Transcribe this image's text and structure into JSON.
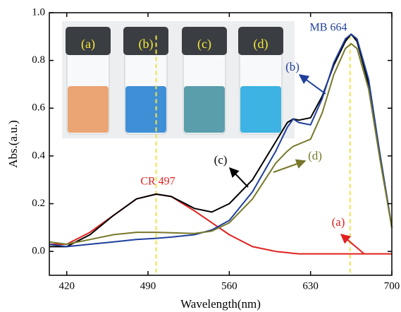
{
  "chart_data": {
    "type": "line",
    "x_label": "Wavelength(nm)",
    "y_label": "Abs.(a.u.)",
    "x": [
      405,
      420,
      440,
      460,
      480,
      497,
      510,
      530,
      545,
      560,
      580,
      600,
      610,
      615,
      620,
      630,
      640,
      650,
      660,
      665,
      670,
      680,
      690,
      700
    ],
    "series": [
      {
        "name": "(a)",
        "color": "#e0201e",
        "values": [
          0.03,
          0.03,
          0.08,
          0.15,
          0.22,
          0.24,
          0.23,
          0.17,
          0.12,
          0.07,
          0.02,
          0.0,
          -0.005,
          -0.008,
          -0.01,
          -0.01,
          -0.01,
          -0.01,
          -0.01,
          -0.01,
          -0.01,
          -0.01,
          -0.01,
          -0.01
        ]
      },
      {
        "name": "(c)",
        "color": "#000000",
        "values": [
          0.02,
          0.02,
          0.07,
          0.15,
          0.22,
          0.24,
          0.23,
          0.18,
          0.165,
          0.2,
          0.3,
          0.46,
          0.54,
          0.555,
          0.55,
          0.56,
          0.65,
          0.78,
          0.88,
          0.91,
          0.88,
          0.7,
          0.4,
          0.1
        ]
      },
      {
        "name": "(b)",
        "color": "#1f3f9c",
        "values": [
          0.03,
          0.02,
          0.03,
          0.04,
          0.05,
          0.055,
          0.06,
          0.07,
          0.09,
          0.13,
          0.25,
          0.42,
          0.52,
          0.555,
          0.54,
          0.53,
          0.64,
          0.79,
          0.89,
          0.91,
          0.89,
          0.72,
          0.4,
          0.1
        ]
      },
      {
        "name": "(d)",
        "color": "#77782a",
        "values": [
          0.04,
          0.03,
          0.05,
          0.07,
          0.08,
          0.08,
          0.078,
          0.075,
          0.085,
          0.12,
          0.22,
          0.37,
          0.42,
          0.44,
          0.45,
          0.47,
          0.58,
          0.74,
          0.85,
          0.87,
          0.85,
          0.68,
          0.38,
          0.1
        ]
      }
    ],
    "markers": [
      497,
      664
    ],
    "marker_color": "#f2e24a",
    "annotations": [
      {
        "text": "MB 664",
        "color": "#1f3f9c"
      },
      {
        "text": "CR 497",
        "color": "#e0201e"
      }
    ],
    "inset_labels": [
      "(a)",
      "(b)",
      "(c)",
      "(d)"
    ],
    "xlim": [
      405,
      700
    ],
    "ylim": [
      -0.1,
      1.0
    ],
    "xticks": [
      420,
      490,
      560,
      630,
      700
    ],
    "yticks": [
      {
        "value": 0,
        "label": "0.0"
      },
      0.2,
      0.4,
      0.6,
      0.8,
      {
        "value": 1,
        "label": "1.0"
      }
    ]
  }
}
